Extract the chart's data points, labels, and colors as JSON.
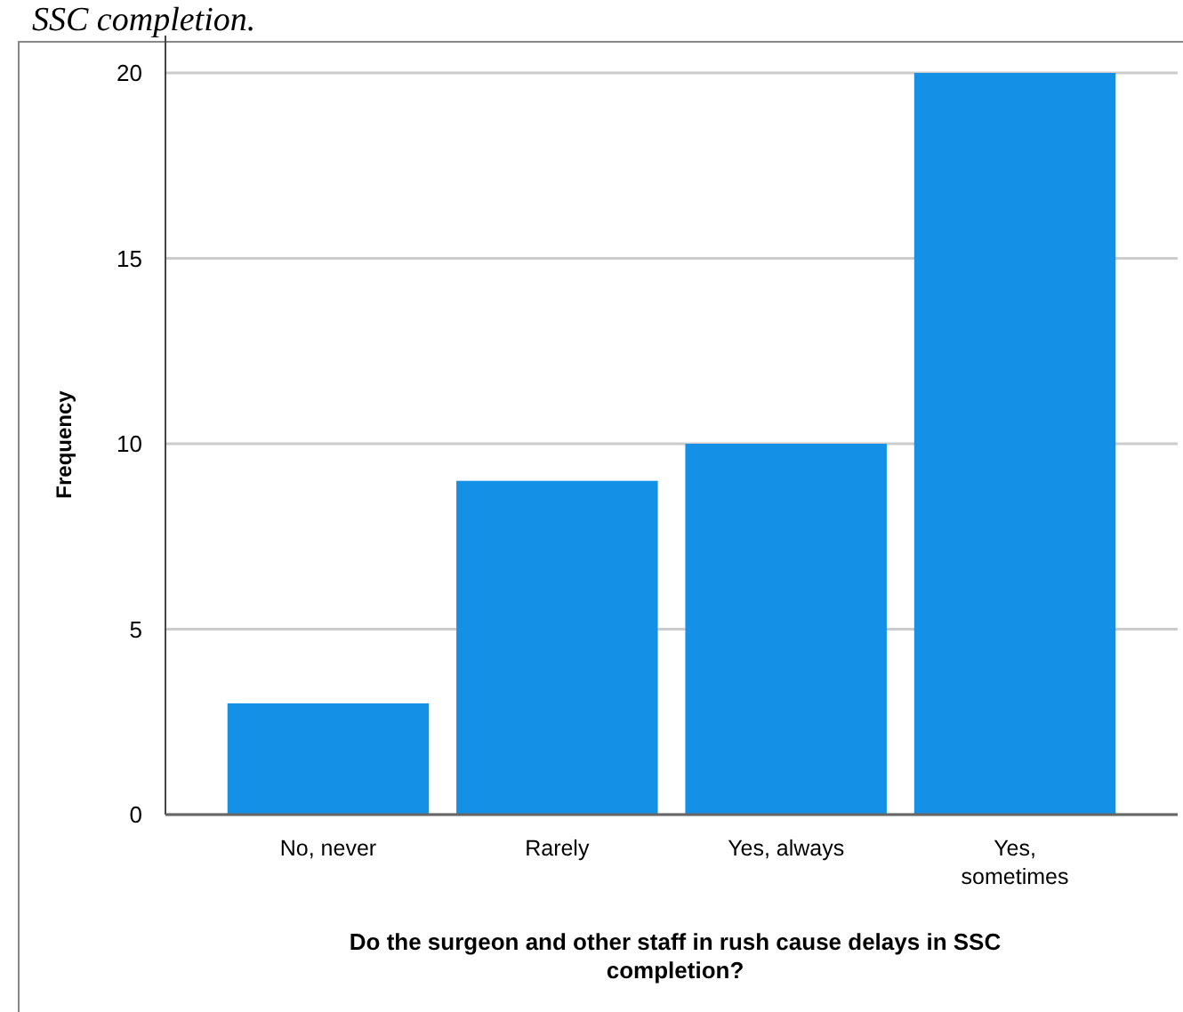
{
  "chart_data": {
    "type": "bar",
    "xlabel": "Do the surgeon and other staff in rush cause delays in SSC completion?",
    "ylabel": "Frequency",
    "categories": [
      "No, never",
      "Rarely",
      "Yes, always",
      "Yes, sometimes"
    ],
    "values": [
      3,
      9,
      10,
      20
    ],
    "color": "#1490e6",
    "ylim": [
      0,
      21
    ],
    "yticks": [
      0,
      5,
      10,
      15,
      20
    ],
    "grid": "y",
    "annotations": [
      "SSC completion."
    ]
  }
}
